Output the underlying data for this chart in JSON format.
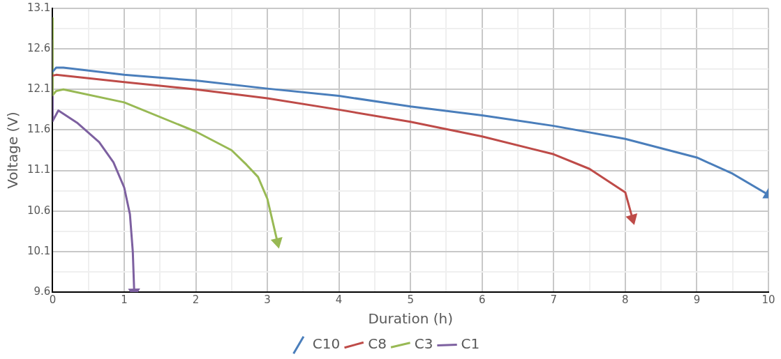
{
  "chart_data": {
    "type": "line",
    "xlabel": "Duration (h)",
    "ylabel": "Voltage (V)",
    "xlim": [
      0,
      10
    ],
    "ylim": [
      9.6,
      13.1
    ],
    "xticks": [
      0,
      {
        "value": 0.5,
        "label": null
      },
      1,
      {
        "value": 1.5,
        "label": null
      },
      2,
      {
        "value": 2.5,
        "label": null
      },
      3,
      {
        "value": 3.5,
        "label": null
      },
      4,
      {
        "value": 4.5,
        "label": null
      },
      5,
      {
        "value": 5.5,
        "label": null
      },
      6,
      {
        "value": 6.5,
        "label": null
      },
      7,
      {
        "value": 7.5,
        "label": null
      },
      8,
      {
        "value": 8.5,
        "label": null
      },
      9,
      {
        "value": 9.5,
        "label": null
      },
      10
    ],
    "yticks": [
      9.6,
      {
        "value": 9.85,
        "label": null
      },
      10.1,
      {
        "value": 10.35,
        "label": null
      },
      10.6,
      {
        "value": 10.85,
        "label": null
      },
      11.1,
      {
        "value": 11.35,
        "label": null
      },
      11.6,
      {
        "value": 11.85,
        "label": null
      },
      12.1,
      {
        "value": 12.35,
        "label": null
      },
      12.6,
      {
        "value": 12.85,
        "label": null
      },
      13.1
    ],
    "grid": true,
    "legend": "bottom",
    "marker": "none",
    "line_style": "solid",
    "series": [
      {
        "name": "C10",
        "color": "#4a7ebb",
        "x": [
          0,
          0.05,
          0.15,
          1,
          2,
          3,
          4,
          5,
          6,
          7,
          8,
          9,
          9.5,
          10
        ],
        "values": [
          12.32,
          12.37,
          12.37,
          12.28,
          12.21,
          12.11,
          12.02,
          11.89,
          11.78,
          11.65,
          11.49,
          11.26,
          11.06,
          10.8
        ]
      },
      {
        "name": "C8",
        "color": "#be4b48",
        "x": [
          0,
          0.05,
          1,
          2,
          3,
          4,
          5,
          6,
          7,
          7.5,
          8,
          8.1
        ],
        "values": [
          12.27,
          12.28,
          12.19,
          12.1,
          11.99,
          11.85,
          11.7,
          11.52,
          11.3,
          11.12,
          10.83,
          10.51
        ]
      },
      {
        "name": "C3",
        "color": "#98b954",
        "x": [
          0,
          0,
          0.05,
          0.15,
          1,
          2,
          2.5,
          2.71,
          2.87,
          3,
          3.14
        ],
        "values": [
          12.98,
          12.03,
          12.08,
          12.1,
          11.94,
          11.58,
          11.35,
          11.17,
          11.02,
          10.75,
          10.22
        ]
      },
      {
        "name": "C1",
        "color": "#7d60a0",
        "x": [
          0,
          0,
          0.08,
          0.34,
          0.65,
          0.85,
          1,
          1.08,
          1.12,
          1.14
        ],
        "values": [
          12.7,
          11.71,
          11.84,
          11.69,
          11.45,
          11.2,
          10.89,
          10.56,
          10.1,
          9.6
        ]
      }
    ]
  }
}
